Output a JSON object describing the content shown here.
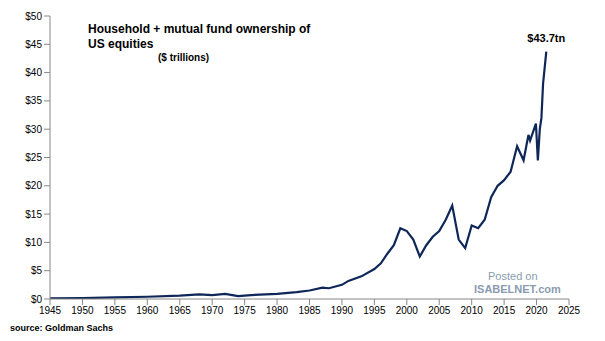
{
  "chart_data": {
    "type": "line",
    "title": "Household + mutual fund ownership of US equities",
    "subtitle": "($ trillions)",
    "source": "source: Goldman Sachs",
    "watermark": [
      "Posted on",
      "ISABELNET.com"
    ],
    "x": [
      1945,
      1950,
      1955,
      1960,
      1965,
      1968,
      1970,
      1972,
      1974,
      1976,
      1980,
      1983,
      1985,
      1987,
      1988,
      1990,
      1991,
      1993,
      1995,
      1996,
      1997,
      1998,
      1999,
      2000,
      2001,
      2002,
      2003,
      2004,
      2005,
      2006,
      2007,
      2008,
      2009,
      2010,
      2011,
      2012,
      2013,
      2014,
      2015,
      2016,
      2017,
      2018,
      2018.75,
      2019,
      2019.9,
      2020.2,
      2020.5,
      2020.75,
      2021,
      2021.5
    ],
    "series": [
      {
        "name": "Household + mutual fund ownership of US equities",
        "color": "#0e2758",
        "values": [
          0.1,
          0.15,
          0.3,
          0.4,
          0.6,
          0.8,
          0.7,
          0.9,
          0.5,
          0.7,
          0.9,
          1.2,
          1.5,
          2.0,
          1.9,
          2.5,
          3.2,
          4.0,
          5.3,
          6.3,
          8.0,
          9.5,
          12.5,
          12.0,
          10.5,
          7.5,
          9.5,
          11.0,
          12.0,
          14.0,
          16.5,
          10.5,
          9.0,
          13.0,
          12.5,
          14.0,
          18.0,
          20.0,
          21.0,
          22.5,
          27.0,
          24.5,
          29.0,
          28.0,
          31.0,
          24.5,
          30.0,
          32.0,
          38.0,
          43.7
        ]
      }
    ],
    "annotations": [
      {
        "text": "$43.7tn",
        "x": 2021.5,
        "y": 43.7
      }
    ],
    "xlim": [
      1945,
      2025
    ],
    "xticks": [
      1945,
      1950,
      1955,
      1960,
      1965,
      1970,
      1975,
      1980,
      1985,
      1990,
      1995,
      2000,
      2005,
      2010,
      2015,
      2020,
      2025
    ],
    "ylim": [
      0,
      50
    ],
    "yticks": [
      {
        "value": 0,
        "label": "$0"
      },
      {
        "value": 5,
        "label": "$5"
      },
      {
        "value": 10,
        "label": "$10"
      },
      {
        "value": 15,
        "label": "$15"
      },
      {
        "value": 20,
        "label": "$20"
      },
      {
        "value": 25,
        "label": "$25"
      },
      {
        "value": 30,
        "label": "$30"
      },
      {
        "value": 35,
        "label": "$35"
      },
      {
        "value": 40,
        "label": "$40"
      },
      {
        "value": 45,
        "label": "$45"
      },
      {
        "value": 50,
        "label": "$50"
      }
    ],
    "grid": false,
    "legend": "none"
  }
}
